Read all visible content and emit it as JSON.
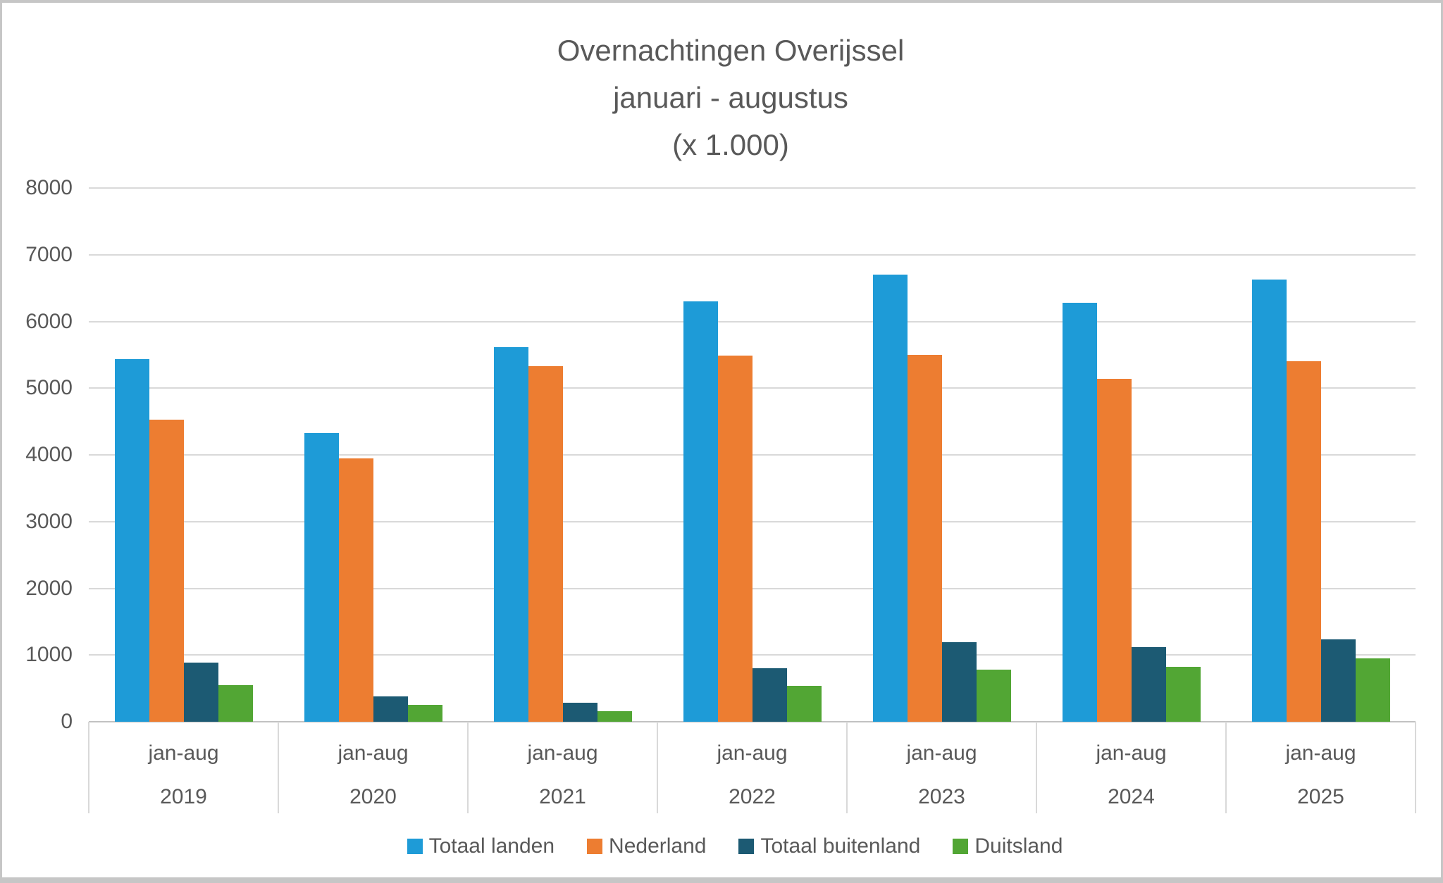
{
  "title": {
    "line1": "Overnachtingen Overijssel",
    "line2": "januari - augustus",
    "line3": "(x 1.000)"
  },
  "chart_data": {
    "type": "bar",
    "title": "Overnachtingen Overijssel januari - augustus (x 1.000)",
    "categories": [
      {
        "period": "jan-aug",
        "year": "2019"
      },
      {
        "period": "jan-aug",
        "year": "2020"
      },
      {
        "period": "jan-aug",
        "year": "2021"
      },
      {
        "period": "jan-aug",
        "year": "2022"
      },
      {
        "period": "jan-aug",
        "year": "2023"
      },
      {
        "period": "jan-aug",
        "year": "2024"
      },
      {
        "period": "jan-aug",
        "year": "2025"
      }
    ],
    "series": [
      {
        "name": "Totaal landen",
        "color": "#1e9bd7",
        "values": [
          5440,
          4330,
          5610,
          6300,
          6700,
          6280,
          6630
        ]
      },
      {
        "name": "Nederland",
        "color": "#ed7d31",
        "values": [
          4530,
          3950,
          5330,
          5490,
          5500,
          5140,
          5400
        ]
      },
      {
        "name": "Totaal buitenland",
        "color": "#1c5a73",
        "values": [
          890,
          380,
          280,
          800,
          1190,
          1120,
          1230
        ]
      },
      {
        "name": "Duitsland",
        "color": "#52a634",
        "values": [
          550,
          250,
          160,
          540,
          780,
          820,
          950
        ]
      }
    ],
    "ylim": [
      0,
      8000
    ],
    "yticks": [
      0,
      1000,
      2000,
      3000,
      4000,
      5000,
      6000,
      7000,
      8000
    ],
    "xlabel": "",
    "ylabel": "",
    "grid": true,
    "legend_position": "bottom",
    "text_color": "#595959",
    "gridline_color": "#d9d9d9",
    "axisline_color": "#c2c2c2"
  }
}
